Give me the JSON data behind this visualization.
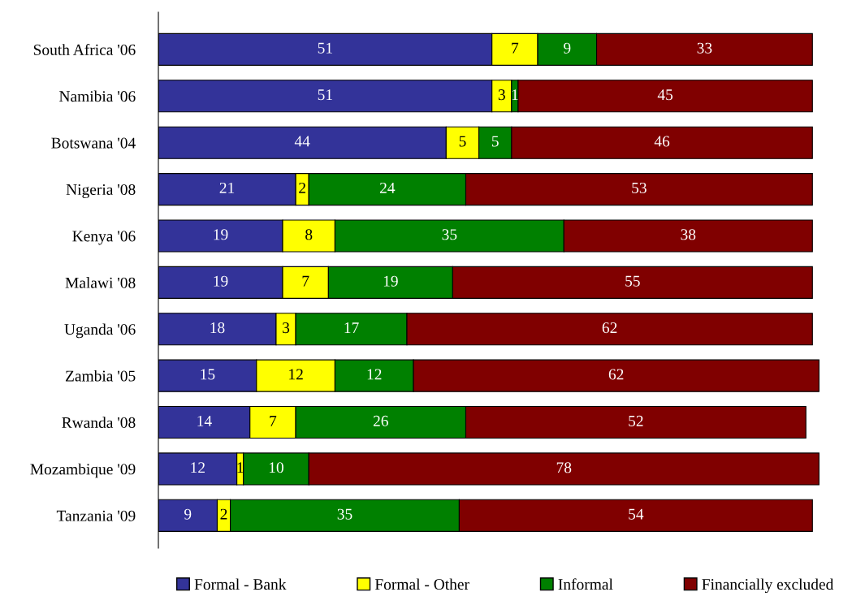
{
  "chart_data": {
    "type": "bar",
    "orientation": "horizontal",
    "stacked": true,
    "data_labels": true,
    "legend": "bottom",
    "grid": false,
    "tick_labels": "y",
    "categories": [
      "South Africa '06",
      "Namibia '06",
      "Botswana '04",
      "Nigeria '08",
      "Kenya '06",
      "Malawi '08",
      "Uganda '06",
      "Zambia '05",
      "Rwanda '08",
      "Mozambique '09",
      "Tanzania '09"
    ],
    "series": [
      {
        "name": "Formal - Bank",
        "color": "#333399",
        "values": [
          51,
          51,
          44,
          21,
          19,
          19,
          18,
          15,
          14,
          12,
          9
        ]
      },
      {
        "name": "Formal - Other",
        "color": "#ffff00",
        "values": [
          7,
          3,
          5,
          2,
          8,
          7,
          3,
          12,
          7,
          1,
          2
        ]
      },
      {
        "name": "Informal",
        "color": "#008000",
        "values": [
          9,
          1,
          5,
          24,
          35,
          19,
          17,
          12,
          26,
          10,
          35
        ]
      },
      {
        "name": "Financially excluded",
        "color": "#800000",
        "values": [
          33,
          45,
          46,
          53,
          38,
          55,
          62,
          62,
          52,
          78,
          54
        ]
      }
    ]
  }
}
